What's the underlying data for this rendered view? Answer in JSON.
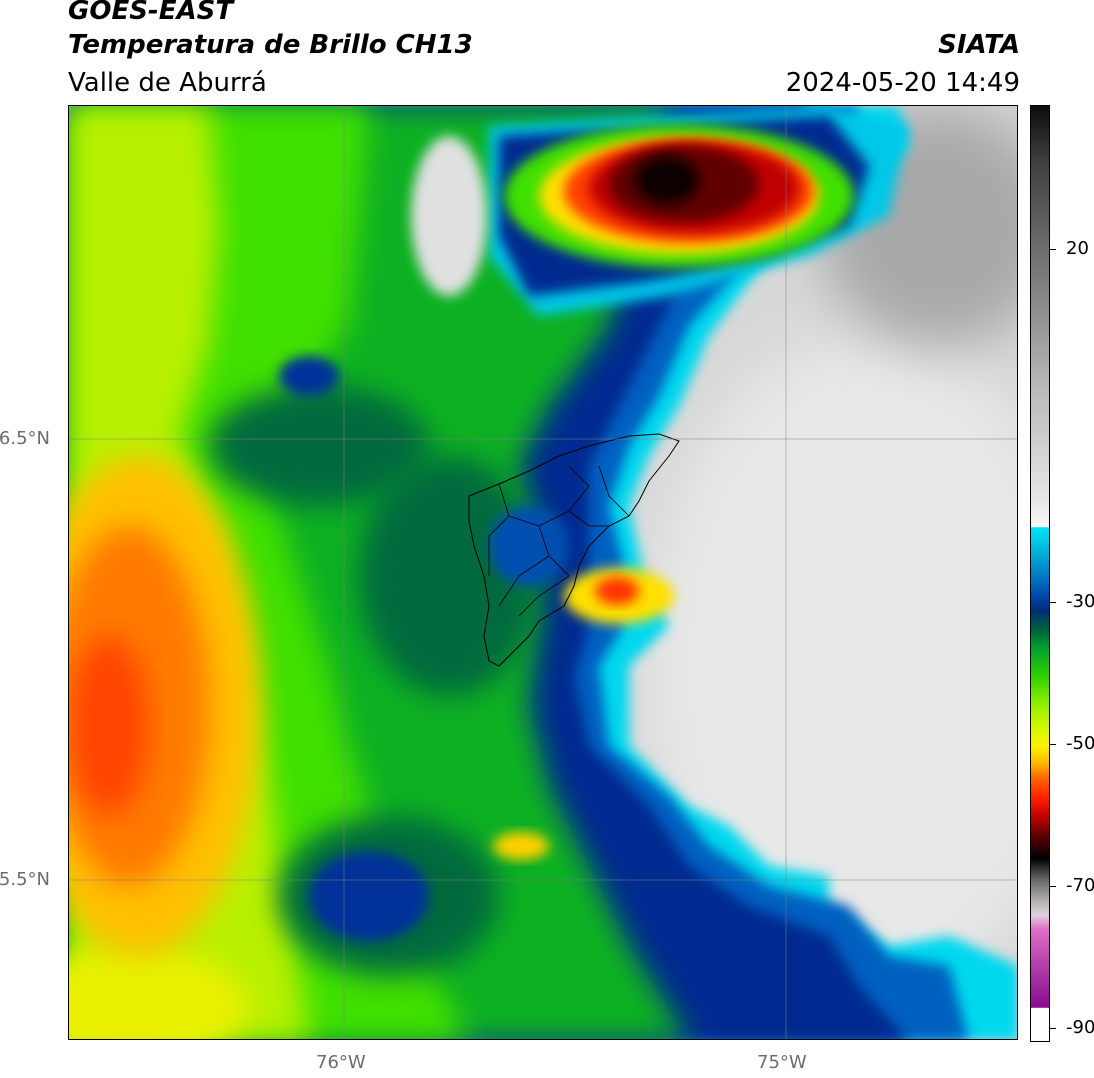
{
  "header": {
    "satellite": "GOES-EAST",
    "product": "Temperatura de Brillo CH13",
    "region": "Valle de Aburrá",
    "organization": "SIATA",
    "datetime": "2024-05-20 14:49"
  },
  "map": {
    "lat_labels": [
      "6.5°N",
      "5.5°N"
    ],
    "lon_labels": [
      "76°W",
      "75°W"
    ]
  },
  "colorbar": {
    "tick_labels": [
      "20",
      "-30",
      "-50",
      "-70",
      "-90"
    ],
    "scale": [
      {
        "value": 20,
        "label": "20"
      },
      {
        "value": -30,
        "label": "-30"
      },
      {
        "value": -50,
        "label": "-50"
      },
      {
        "value": -70,
        "label": "-70"
      },
      {
        "value": -90,
        "label": "-90"
      }
    ],
    "palette": {
      "warm_gray_top": "#0c0c0c",
      "warm_light": "#f6f6f6",
      "cyan": "#00e5f2",
      "blue": "#003aa0",
      "dark_green": "#006040",
      "green": "#30d000",
      "yellow": "#fff000",
      "orange": "#ff6000",
      "red": "#c00000",
      "black": "#000000",
      "magenta": "#b040a8",
      "purple": "#8a0a90"
    }
  }
}
